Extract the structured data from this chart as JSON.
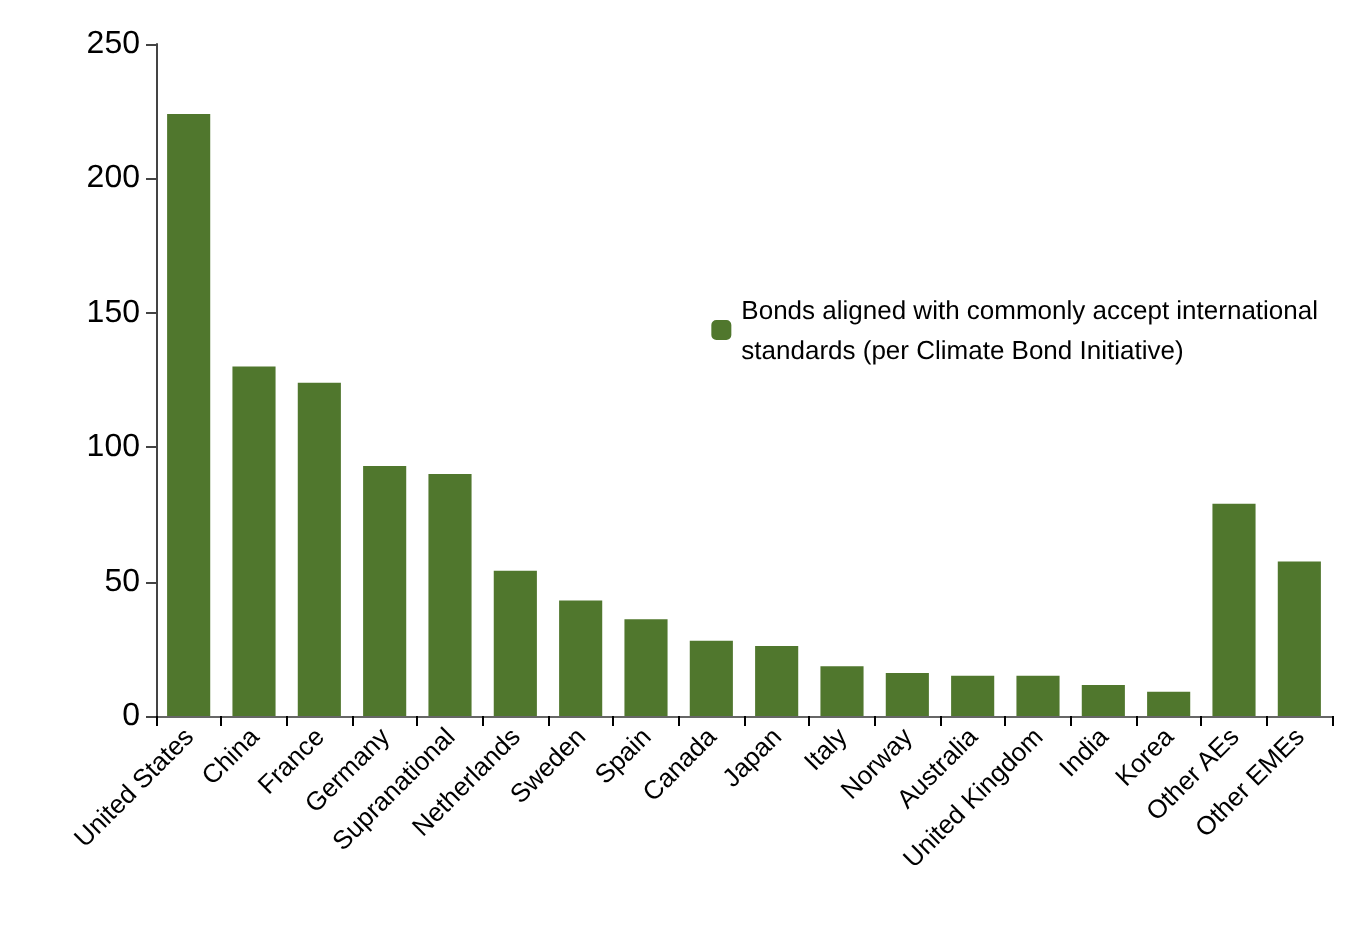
{
  "chart_data": {
    "type": "bar",
    "categories": [
      "United States",
      "China",
      "France",
      "Germany",
      "Supranational",
      "Netherlands",
      "Sweden",
      "Spain",
      "Canada",
      "Japan",
      "Italy",
      "Norway",
      "Australia",
      "United Kingdom",
      "India",
      "Korea",
      "Other AEs",
      "Other EMEs"
    ],
    "series": [
      {
        "name": "Bonds aligned with commonly accept international standards (per Climate Bond Initiative)",
        "color": "#50772d",
        "values": [
          224,
          130,
          124,
          93,
          90,
          54,
          43,
          36,
          28,
          26,
          18.5,
          16,
          15,
          15,
          11.5,
          9,
          79,
          57.5
        ]
      }
    ],
    "ylim": [
      0,
      250
    ],
    "yticks": [
      0,
      50,
      100,
      150,
      200,
      250
    ],
    "grid": false,
    "legend": "right"
  }
}
